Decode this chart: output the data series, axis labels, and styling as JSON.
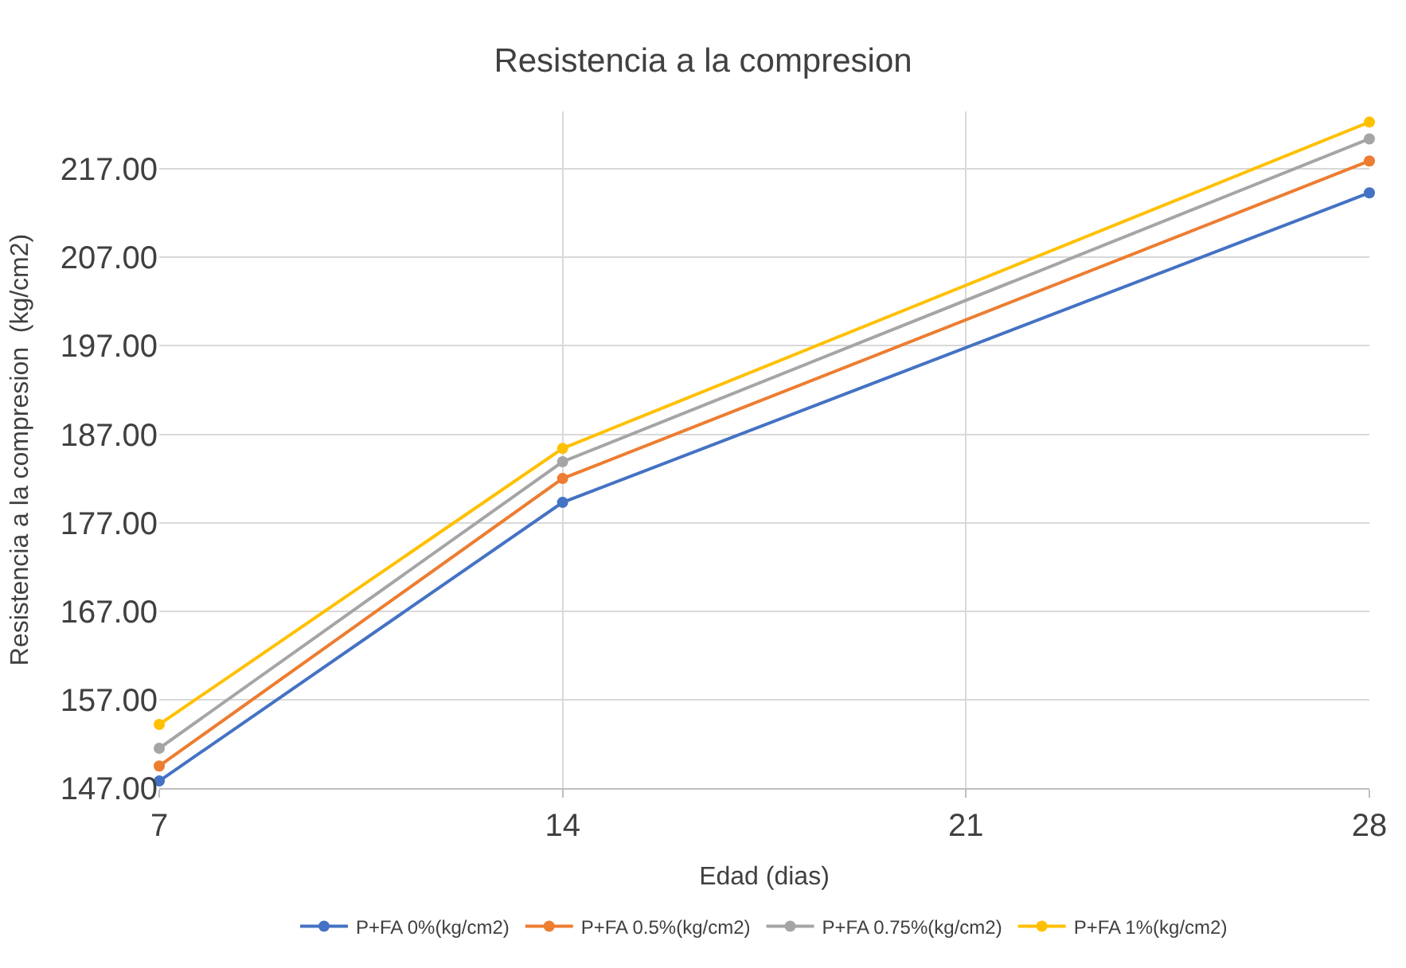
{
  "chart_data": {
    "type": "line",
    "title": "Resistencia a la compresion",
    "xlabel": "Edad (dias)",
    "ylabel": "Resistencia a la compresion  (kg/cm2)",
    "x": [
      7,
      14,
      28
    ],
    "series": [
      {
        "name": "P+FA 0%(kg/cm2)",
        "color": "#4472c4",
        "values": [
          147.8,
          179.3,
          214.3
        ]
      },
      {
        "name": "P+FA 0.5%(kg/cm2)",
        "color": "#ed7d31",
        "values": [
          149.5,
          182.0,
          217.9
        ]
      },
      {
        "name": "P+FA 0.75%(kg/cm2)",
        "color": "#a5a5a5",
        "values": [
          151.5,
          183.9,
          220.4
        ]
      },
      {
        "name": "P+FA 1%(kg/cm2)",
        "color": "#ffc000",
        "values": [
          154.2,
          185.4,
          222.3
        ]
      }
    ],
    "xlim": [
      7,
      28
    ],
    "xticks": [
      7,
      14,
      21,
      28
    ],
    "ylim": [
      147,
      223.5
    ],
    "yticks": [
      {
        "value": 147,
        "label": "147.00"
      },
      {
        "value": 157,
        "label": "157.00"
      },
      {
        "value": 167,
        "label": "167.00"
      },
      {
        "value": 177,
        "label": "177.00"
      },
      {
        "value": 187,
        "label": "187.00"
      },
      {
        "value": 197,
        "label": "197.00"
      },
      {
        "value": 207,
        "label": "207.00"
      },
      {
        "value": 217,
        "label": "217.00"
      }
    ],
    "grid": true,
    "legend": "bottom",
    "marker": "circle",
    "line_style": "solid"
  }
}
